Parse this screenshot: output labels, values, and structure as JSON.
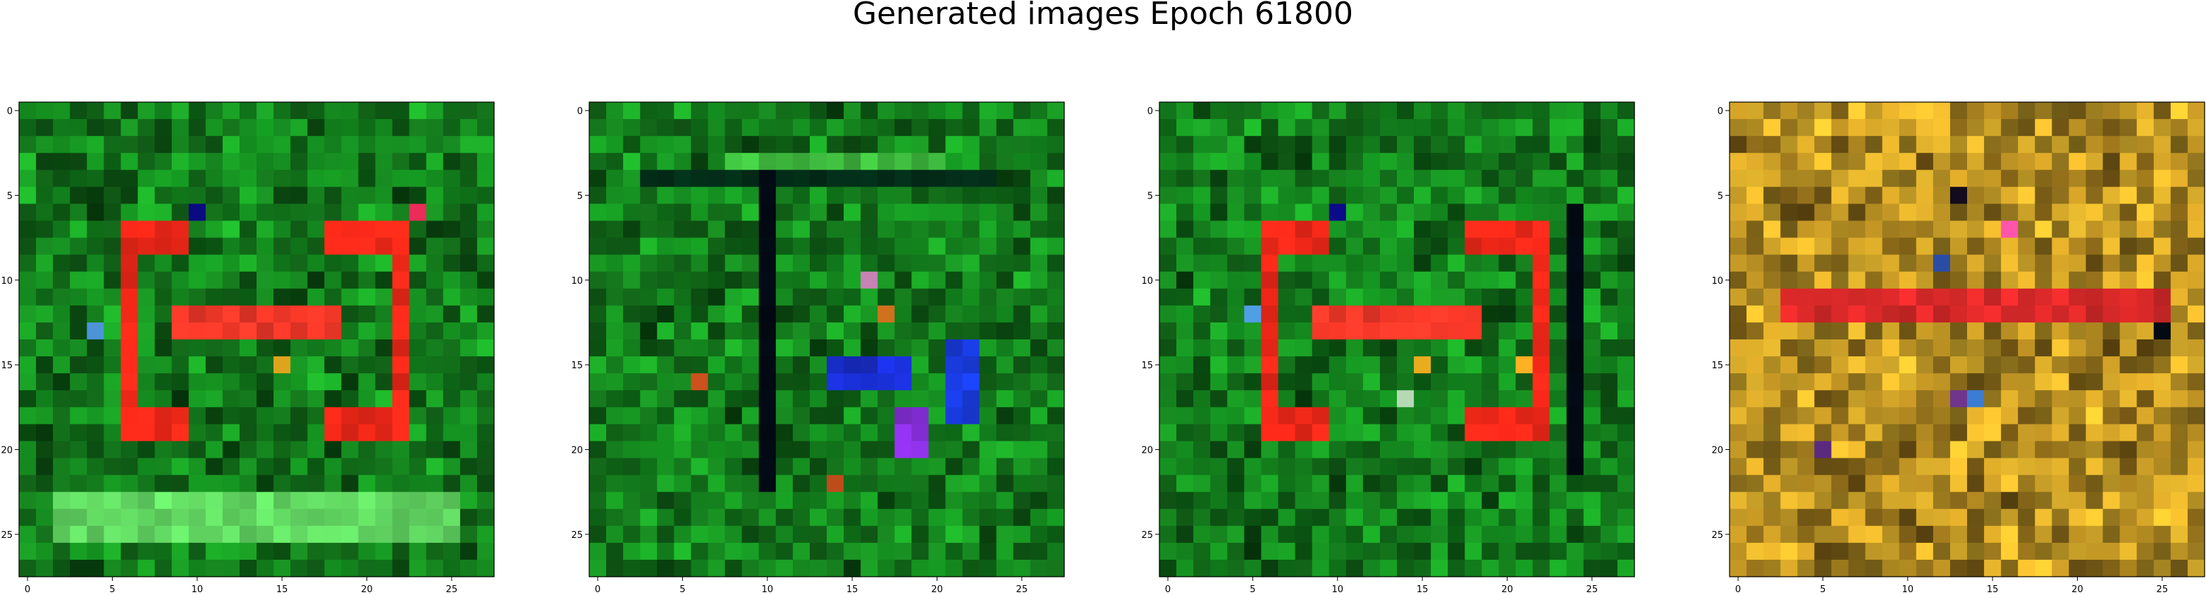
{
  "chart_data": {
    "type": "heatmap",
    "title": "Generated images Epoch 61800",
    "grid": false,
    "size": 28,
    "xticks": [
      0,
      5,
      10,
      15,
      20,
      25
    ],
    "yticks": [
      0,
      5,
      10,
      15,
      20,
      25
    ],
    "panels": [
      {
        "base_color": "#137a1c",
        "features": [
          {
            "shape": "bracket",
            "color": "#ff2a1a",
            "x0": 6,
            "x1": 9,
            "y0": 7,
            "y1": 19,
            "open": "right"
          },
          {
            "shape": "bracket",
            "color": "#ff2a1a",
            "x0": 18,
            "x1": 22,
            "y0": 7,
            "y1": 19,
            "open": "left"
          },
          {
            "shape": "bar",
            "color": "#ff3a2a",
            "x0": 9,
            "x1": 18,
            "y0": 12,
            "y1": 13
          },
          {
            "shape": "bar",
            "color": "#66e066",
            "x0": 2,
            "x1": 25,
            "y0": 23,
            "y1": 25
          },
          {
            "shape": "dot",
            "color": "#4f9be0",
            "x": 4,
            "y": 13
          },
          {
            "shape": "dot",
            "color": "#0b0b8a",
            "x": 10,
            "y": 6
          },
          {
            "shape": "dot",
            "color": "#f0b020",
            "x": 15,
            "y": 15
          },
          {
            "shape": "dot",
            "color": "#ff3060",
            "x": 23,
            "y": 6
          }
        ]
      },
      {
        "base_color": "#137a1c",
        "features": [
          {
            "shape": "bar",
            "color": "#03301a",
            "x0": 3,
            "x1": 23,
            "y0": 4,
            "y1": 4
          },
          {
            "shape": "bar",
            "color": "#020a14",
            "x0": 10,
            "x1": 10,
            "y0": 4,
            "y1": 22
          },
          {
            "shape": "bar",
            "color": "#40c040",
            "x0": 8,
            "x1": 20,
            "y0": 3,
            "y1": 3
          },
          {
            "shape": "bar",
            "color": "#1a30d8",
            "x0": 14,
            "x1": 18,
            "y0": 15,
            "y1": 16
          },
          {
            "shape": "bar",
            "color": "#1a3ee8",
            "x0": 21,
            "x1": 22,
            "y0": 14,
            "y1": 18
          },
          {
            "shape": "bar",
            "color": "#8a30e0",
            "x0": 18,
            "x1": 19,
            "y0": 18,
            "y1": 20
          },
          {
            "shape": "dot",
            "color": "#e05a20",
            "x": 6,
            "y": 16
          },
          {
            "shape": "dot",
            "color": "#e05a20",
            "x": 14,
            "y": 22
          },
          {
            "shape": "dot",
            "color": "#d48cc0",
            "x": 16,
            "y": 10
          },
          {
            "shape": "dot",
            "color": "#e07a20",
            "x": 17,
            "y": 12
          }
        ]
      },
      {
        "base_color": "#137a1c",
        "features": [
          {
            "shape": "bracket",
            "color": "#ff2a1a",
            "x0": 6,
            "x1": 9,
            "y0": 7,
            "y1": 19,
            "open": "right"
          },
          {
            "shape": "bracket",
            "color": "#ff2a1a",
            "x0": 18,
            "x1": 22,
            "y0": 7,
            "y1": 19,
            "open": "left"
          },
          {
            "shape": "bar",
            "color": "#ff3a2a",
            "x0": 9,
            "x1": 18,
            "y0": 12,
            "y1": 13
          },
          {
            "shape": "bar",
            "color": "#020a14",
            "x0": 24,
            "x1": 24,
            "y0": 6,
            "y1": 21
          },
          {
            "shape": "dot",
            "color": "#4f9be0",
            "x": 5,
            "y": 12
          },
          {
            "shape": "dot",
            "color": "#0b0b8a",
            "x": 10,
            "y": 6
          },
          {
            "shape": "dot",
            "color": "#f0b020",
            "x": 15,
            "y": 15
          },
          {
            "shape": "dot",
            "color": "#c8f0c8",
            "x": 14,
            "y": 17
          },
          {
            "shape": "dot",
            "color": "#f0a020",
            "x": 21,
            "y": 15
          }
        ]
      },
      {
        "base_color": "#b08a22",
        "features": [
          {
            "shape": "bar",
            "color": "#e02a2a",
            "x0": 3,
            "x1": 25,
            "y0": 11,
            "y1": 12
          },
          {
            "shape": "dot",
            "color": "#120a1a",
            "x": 13,
            "y": 5
          },
          {
            "shape": "dot",
            "color": "#2a4aa0",
            "x": 12,
            "y": 9
          },
          {
            "shape": "dot",
            "color": "#ff50a0",
            "x": 16,
            "y": 7
          },
          {
            "shape": "dot",
            "color": "#7a3a9a",
            "x": 13,
            "y": 17
          },
          {
            "shape": "dot",
            "color": "#3a7ad0",
            "x": 14,
            "y": 17
          },
          {
            "shape": "dot",
            "color": "#020a14",
            "x": 25,
            "y": 13
          },
          {
            "shape": "dot",
            "color": "#5a2a80",
            "x": 5,
            "y": 20
          }
        ]
      }
    ]
  }
}
